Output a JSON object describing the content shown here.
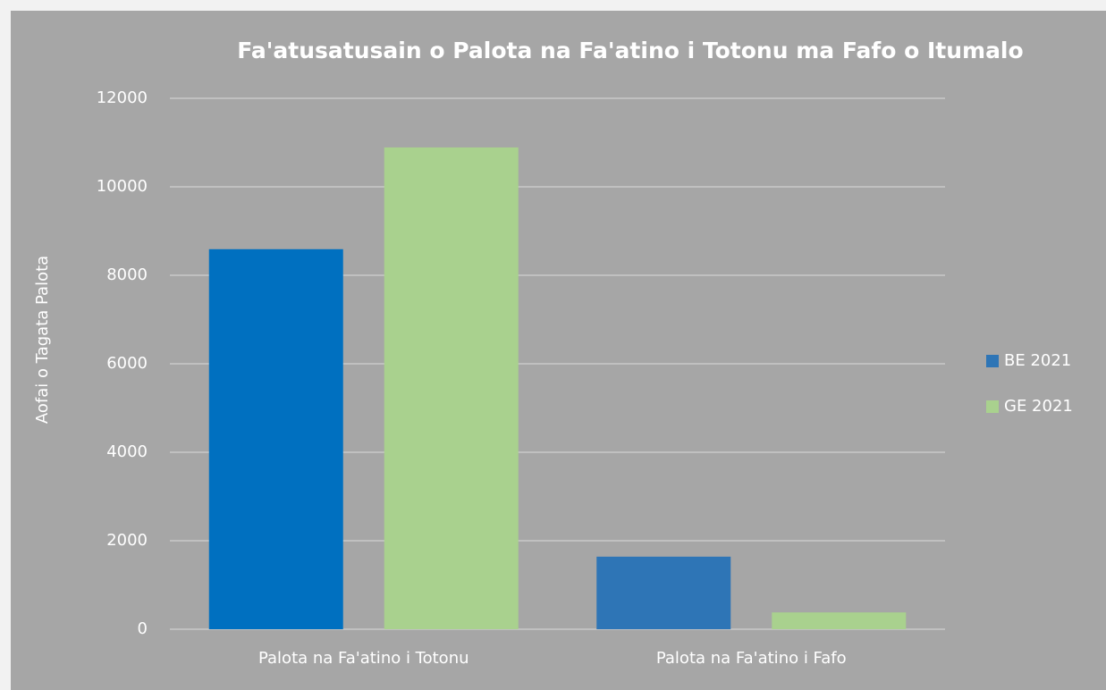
{
  "chart_data": {
    "type": "bar",
    "title": "Fa'atusatusain o Palota na Fa'atino i Totonu ma Fafo o Itumalo",
    "ylabel": "Aofai o Tagata Palota",
    "categories": [
      "Palota na Fa'atino i Totonu",
      "Palota na Fa'atino i Fafo"
    ],
    "series": [
      {
        "name": "BE 2021",
        "color": "#2e75b6",
        "point_colors": [
          "#0070c0",
          "#2e75b6"
        ],
        "values": [
          8590,
          1640
        ]
      },
      {
        "name": "GE 2021",
        "color": "#a9d18e",
        "values": [
          10890,
          380
        ]
      }
    ],
    "ylim": [
      0,
      12000
    ],
    "yticks": [
      0,
      2000,
      4000,
      6000,
      8000,
      10000,
      12000
    ],
    "grid": true,
    "legend": "right"
  }
}
